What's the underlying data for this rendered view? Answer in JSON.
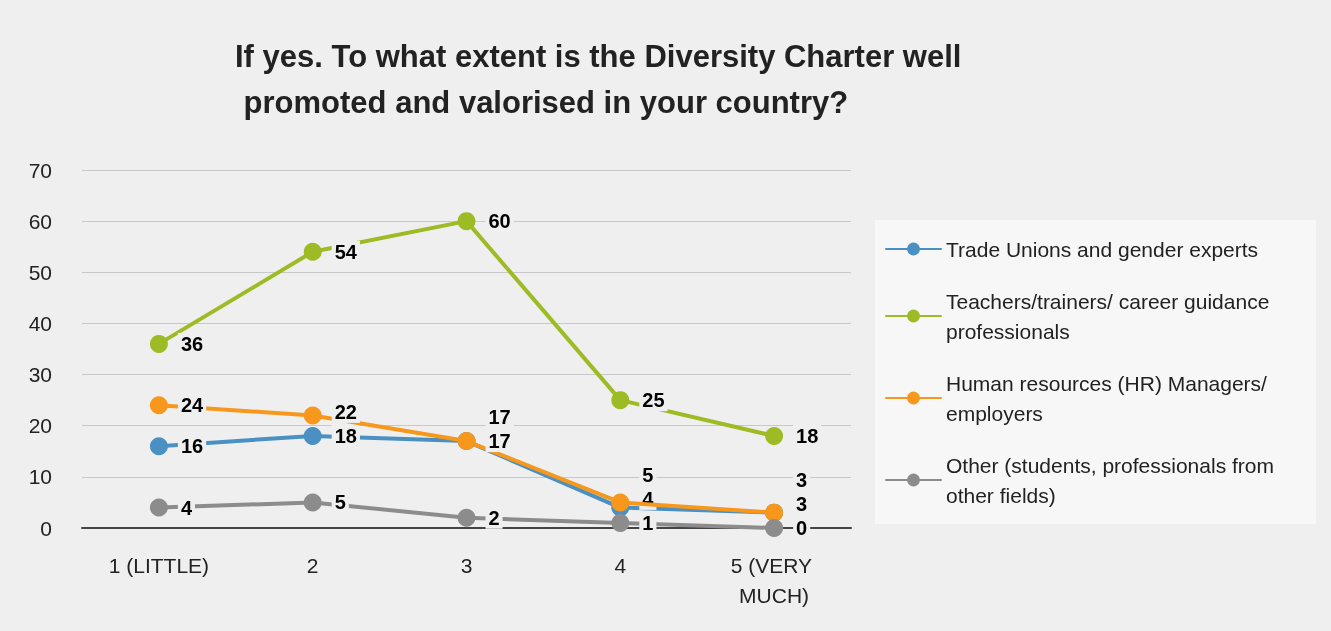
{
  "chart_data": {
    "type": "line",
    "title": "If yes. To what extent is the Diversity Charter well promoted and valorised in your country?",
    "categories": [
      "1 (LITTLE)",
      "2",
      "3",
      "4",
      "5 (VERY MUCH)"
    ],
    "series": [
      {
        "name": "Trade Unions and gender experts",
        "color": "#4a90c2",
        "values": [
          16,
          18,
          17,
          4,
          3
        ]
      },
      {
        "name": "Teachers/trainers/ career guidance professionals",
        "color": "#9dbb25",
        "values": [
          36,
          54,
          60,
          25,
          18
        ]
      },
      {
        "name": "Human resources (HR) Managers/ employers",
        "color": "#f7981d",
        "values": [
          24,
          22,
          17,
          5,
          3
        ]
      },
      {
        "name": "Other (students, professionals from other fields)",
        "color": "#8c8c8c",
        "values": [
          4,
          5,
          2,
          1,
          0
        ]
      }
    ],
    "ylim": [
      0,
      70
    ],
    "yticks": [
      0,
      10,
      20,
      30,
      40,
      50,
      60,
      70
    ],
    "grid": "y",
    "legend": "right",
    "marker": "circle",
    "line_style": "solid",
    "data_labels": true
  }
}
